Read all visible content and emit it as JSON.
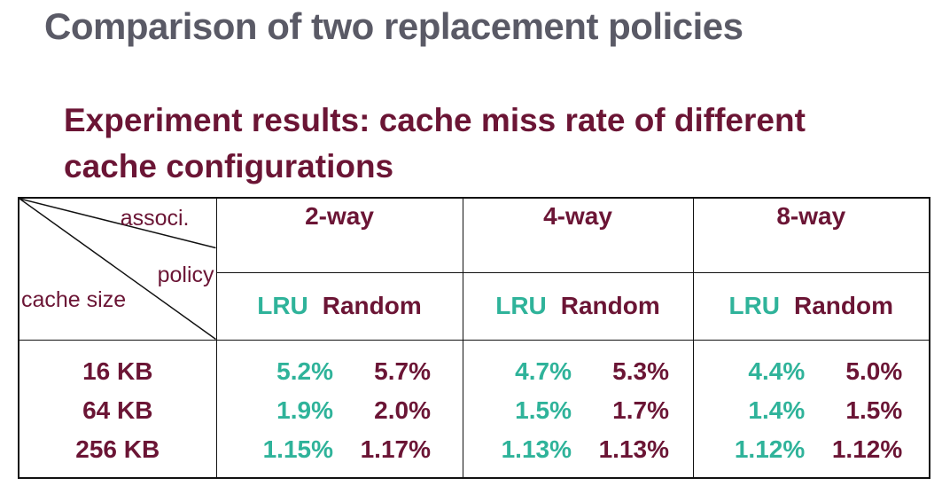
{
  "title": "Comparison of two replacement policies",
  "subtitle": "Experiment results: cache miss rate of different cache configurations",
  "table": {
    "corner": {
      "assoc_label": "associ.",
      "policy_label": "policy",
      "size_label": "cache size"
    },
    "associativities": [
      "2-way",
      "4-way",
      "8-way"
    ],
    "policies": [
      "LRU",
      "Random"
    ],
    "cache_sizes": [
      "16 KB",
      "64 KB",
      "256 KB"
    ],
    "miss_rates": {
      "2way": {
        "lru": [
          "5.2%",
          "1.9%",
          "1.15%"
        ],
        "random": [
          "5.7%",
          "2.0%",
          "1.17%"
        ]
      },
      "4way": {
        "lru": [
          "4.7%",
          "1.5%",
          "1.13%"
        ],
        "random": [
          "5.3%",
          "1.7%",
          "1.13%"
        ]
      },
      "8way": {
        "lru": [
          "4.4%",
          "1.4%",
          "1.12%"
        ],
        "random": [
          "5.0%",
          "1.5%",
          "1.12%"
        ]
      }
    }
  },
  "colors": {
    "title": "#5a5a66",
    "maroon": "#6b1535",
    "teal": "#2fb39a"
  }
}
